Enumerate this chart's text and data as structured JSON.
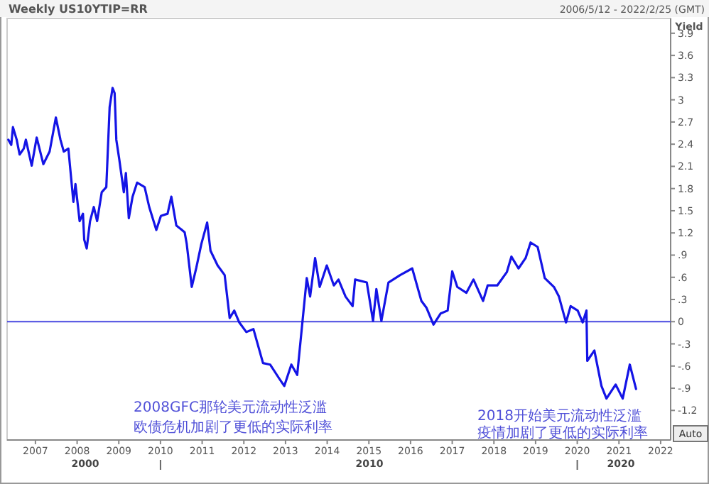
{
  "chart_data": {
    "type": "line",
    "title": "Weekly US10YTIP=RR",
    "ylabel": "Yield",
    "annotations": [
      "2006/5/12 - 2022/2/25 (GMT)",
      "2008GFC那轮美元流动性泛滥",
      "欧债危机加剧了更低的实际利率",
      "2018开始美元流动性泛滥",
      "疫情加剧了更低的实际利率",
      "2000",
      "2010",
      "2020",
      "Auto"
    ],
    "series": [
      {
        "color": "#1414e6",
        "x": [
          2006.35,
          2006.42,
          2006.46,
          2006.55,
          2006.62,
          2006.72,
          2006.77,
          2006.91,
          2007.03,
          2007.19,
          2007.34,
          2007.49,
          2007.6,
          2007.68,
          2007.79,
          2007.91,
          2007.96,
          2008.06,
          2008.14,
          2008.17,
          2008.23,
          2008.31,
          2008.4,
          2008.48,
          2008.59,
          2008.7,
          2008.78,
          2008.85,
          2008.9,
          2008.94,
          2009.01,
          2009.12,
          2009.17,
          2009.24,
          2009.33,
          2009.44,
          2009.62,
          2009.73,
          2009.9,
          2010.01,
          2010.17,
          2010.26,
          2010.38,
          2010.58,
          2010.63,
          2010.75,
          2010.86,
          2010.98,
          2011.12,
          2011.2,
          2011.37,
          2011.54,
          2011.66,
          2011.77,
          2011.89,
          2012.06,
          2012.23,
          2012.46,
          2012.63,
          2012.85,
          2012.97,
          2013.14,
          2013.28,
          2013.51,
          2013.59,
          2013.71,
          2013.82,
          2013.99,
          2014.16,
          2014.27,
          2014.44,
          2014.61,
          2014.67,
          2014.95,
          2015.1,
          2015.18,
          2015.3,
          2015.47,
          2015.75,
          2016.04,
          2016.26,
          2016.38,
          2016.55,
          2016.72,
          2016.89,
          2017.0,
          2017.12,
          2017.34,
          2017.51,
          2017.74,
          2017.85,
          2018.08,
          2018.31,
          2018.42,
          2018.59,
          2018.76,
          2018.88,
          2019.05,
          2019.22,
          2019.44,
          2019.56,
          2019.73,
          2019.84,
          2020.01,
          2020.13,
          2020.22,
          2020.24,
          2020.41,
          2020.58,
          2020.7,
          2020.92,
          2021.09,
          2021.26,
          2021.41
        ],
        "values": [
          2.46,
          2.39,
          2.63,
          2.46,
          2.26,
          2.34,
          2.46,
          2.11,
          2.49,
          2.13,
          2.3,
          2.76,
          2.46,
          2.3,
          2.34,
          1.62,
          1.86,
          1.36,
          1.46,
          1.11,
          0.99,
          1.36,
          1.55,
          1.36,
          1.75,
          1.82,
          2.9,
          3.16,
          3.09,
          2.46,
          2.2,
          1.75,
          2.01,
          1.4,
          1.69,
          1.88,
          1.82,
          1.55,
          1.24,
          1.43,
          1.46,
          1.69,
          1.3,
          1.21,
          1.05,
          0.47,
          0.73,
          1.05,
          1.34,
          0.96,
          0.76,
          0.63,
          0.05,
          0.15,
          -0.01,
          -0.14,
          -0.1,
          -0.56,
          -0.58,
          -0.77,
          -0.87,
          -0.58,
          -0.72,
          0.59,
          0.34,
          0.86,
          0.47,
          0.76,
          0.49,
          0.57,
          0.34,
          0.21,
          0.57,
          0.53,
          0.01,
          0.44,
          0.01,
          0.53,
          0.63,
          0.72,
          0.28,
          0.19,
          -0.04,
          0.11,
          0.15,
          0.68,
          0.47,
          0.39,
          0.57,
          0.28,
          0.49,
          0.49,
          0.67,
          0.88,
          0.72,
          0.86,
          1.07,
          1.01,
          0.59,
          0.47,
          0.34,
          -0.01,
          0.21,
          0.15,
          -0.01,
          0.15,
          -0.53,
          -0.39,
          -0.87,
          -1.04,
          -0.85,
          -1.04,
          -0.58,
          -0.91
        ]
      }
    ],
    "ref_lines": [
      {
        "axis": "y",
        "value": 0,
        "color": "#4848e0"
      }
    ],
    "xlim": [
      2006.32,
      2022.24
    ],
    "xticks": [
      2007,
      2008,
      2009,
      2010,
      2011,
      2012,
      2013,
      2014,
      2015,
      2016,
      2017,
      2018,
      2019,
      2020,
      2021,
      2022
    ],
    "ylim": [
      -1.6,
      4.1
    ],
    "yticks": [
      3.9,
      3.6,
      3.3,
      3,
      2.7,
      2.4,
      2.1,
      1.8,
      1.5,
      1.2,
      {
        "value": 0.9,
        "label": ".9"
      },
      {
        "value": 0.6,
        "label": ".6"
      },
      {
        "value": 0.3,
        "label": ".3"
      },
      0,
      {
        "value": -0.3,
        "label": "-.3"
      },
      {
        "value": -0.6,
        "label": "-.6"
      },
      {
        "value": -0.9,
        "label": "-.9"
      },
      {
        "value": -1.2,
        "label": "-1.2"
      }
    ],
    "grid": false,
    "line_style": "solid",
    "marker": "none"
  }
}
